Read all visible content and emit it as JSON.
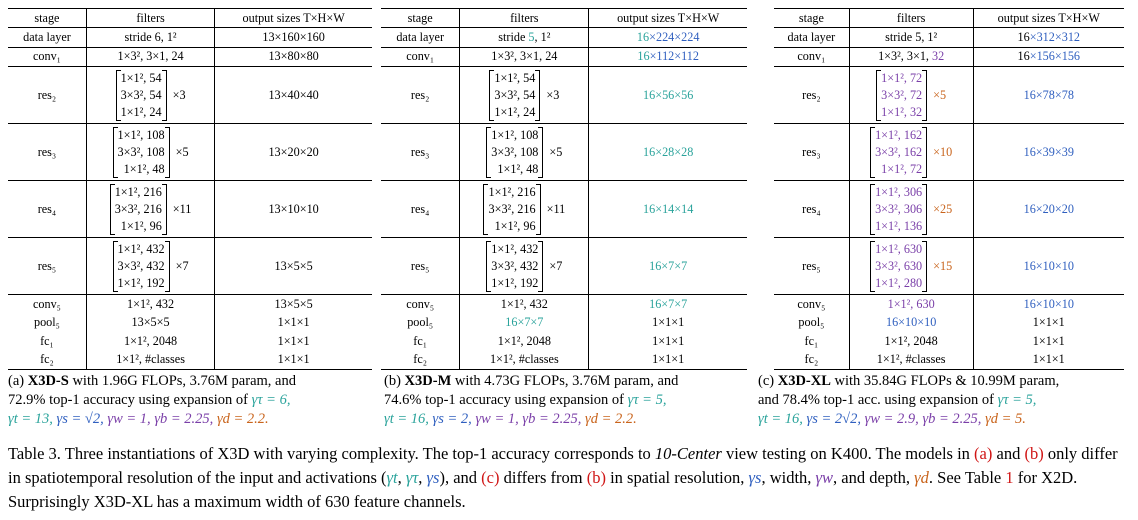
{
  "tables": [
    {
      "id": "a",
      "header": {
        "stage": "stage",
        "filters": "filters",
        "output": "output sizes T×H×W"
      },
      "rows": [
        {
          "stage": "data layer",
          "filters": "stride 6, 1²",
          "output": "13×160×160"
        },
        {
          "stage": "conv₁",
          "filters": "1×3², 3×1, 24",
          "output": "13×80×80"
        },
        {
          "stage": "res₂",
          "l1": "1×1², 54",
          "l2": "3×3², 54",
          "l3": "1×1², 24",
          "rep": "×3",
          "output": "13×40×40"
        },
        {
          "stage": "res₃",
          "l1": "1×1², 108",
          "l2": "3×3², 108",
          "l3": "1×1², 48",
          "rep": "×5",
          "output": "13×20×20"
        },
        {
          "stage": "res₄",
          "l1": "1×1², 216",
          "l2": "3×3², 216",
          "l3": "1×1², 96",
          "rep": "×11",
          "output": "13×10×10"
        },
        {
          "stage": "res₅",
          "l1": "1×1², 432",
          "l2": "3×3², 432",
          "l3": "1×1², 192",
          "rep": "×7",
          "output": "13×5×5"
        },
        {
          "stage": "conv₅",
          "filters": "1×1², 432",
          "output": "13×5×5"
        },
        {
          "stage": "pool₅",
          "filters": "13×5×5",
          "output": "1×1×1"
        },
        {
          "stage": "fc₁",
          "filters": "1×1², 2048",
          "output": "1×1×1"
        },
        {
          "stage": "fc₂",
          "filters": "1×1², #classes",
          "output": "1×1×1"
        }
      ],
      "caption": {
        "label": "(a)",
        "name": "X3D-S",
        "line1_rest": " with 1.96G FLOPs, 3.76M param, and",
        "line2": "72.9% top-1 accuracy using expansion of ",
        "gamma_tau": "γτ = 6,",
        "gamma_t": "γt = 13,",
        "gamma_s": "γs = √2,",
        "gamma_w": "γw = 1,",
        "gamma_b": "γb = 2.25,",
        "gamma_d": "γd = 2.2."
      }
    },
    {
      "id": "b",
      "header": {
        "stage": "stage",
        "filters": "filters",
        "output": "output sizes T×H×W"
      },
      "rows": [
        {
          "stage": "data layer",
          "filters_a": "stride ",
          "filters_b": "5",
          "filters_c": ", 1²",
          "out_a": "16",
          "out_b": "×224×224"
        },
        {
          "stage": "conv₁",
          "filters": "1×3², 3×1, 24",
          "out_a": "16",
          "out_b": "×112×112"
        },
        {
          "stage": "res₂",
          "l1": "1×1², 54",
          "l2": "3×3², 54",
          "l3": "1×1², 24",
          "rep": "×3",
          "output": "16×56×56"
        },
        {
          "stage": "res₃",
          "l1": "1×1², 108",
          "l2": "3×3², 108",
          "l3": "1×1², 48",
          "rep": "×5",
          "output": "16×28×28"
        },
        {
          "stage": "res₄",
          "l1": "1×1², 216",
          "l2": "3×3², 216",
          "l3": "1×1², 96",
          "rep": "×11",
          "output": "16×14×14"
        },
        {
          "stage": "res₅",
          "l1": "1×1², 432",
          "l2": "3×3², 432",
          "l3": "1×1², 192",
          "rep": "×7",
          "output": "16×7×7"
        },
        {
          "stage": "conv₅",
          "filters": "1×1², 432",
          "output": "16×7×7"
        },
        {
          "stage": "pool₅",
          "filters": "16×7×7",
          "output": "1×1×1"
        },
        {
          "stage": "fc₁",
          "filters": "1×1², 2048",
          "output": "1×1×1"
        },
        {
          "stage": "fc₂",
          "filters": "1×1², #classes",
          "output": "1×1×1"
        }
      ],
      "caption": {
        "label": "(b)",
        "name": "X3D-M",
        "line1_rest": " with 4.73G FLOPs, 3.76M param, and",
        "line2": "74.6% top-1 accuracy using expansion of ",
        "gamma_tau": "γτ = 5,",
        "gamma_t": "γt = 16,",
        "gamma_s": "γs = 2,",
        "gamma_w": "γw = 1,",
        "gamma_b": "γb = 2.25,",
        "gamma_d": "γd = 2.2."
      }
    },
    {
      "id": "c",
      "header": {
        "stage": "stage",
        "filters": "filters",
        "output": "output sizes T×H×W"
      },
      "rows": [
        {
          "stage": "data layer",
          "filters": "stride 5, 1²",
          "out_a": "16",
          "out_b": "×312×312"
        },
        {
          "stage": "conv₁",
          "filters_a": "1×3², 3×1, ",
          "filters_b": "32",
          "out_a": "16",
          "out_b": "×156×156"
        },
        {
          "stage": "res₂",
          "l1": "1×1², 72",
          "l2": "3×3², 72",
          "l3": "1×1², 32",
          "rep": "×5",
          "output": "16×78×78"
        },
        {
          "stage": "res₃",
          "l1": "1×1², 162",
          "l2": "3×3², 162",
          "l3": "1×1², 72",
          "rep": "×10",
          "output": "16×39×39"
        },
        {
          "stage": "res₄",
          "l1": "1×1², 306",
          "l2": "3×3², 306",
          "l3": "1×1², 136",
          "rep": "×25",
          "output": "16×20×20"
        },
        {
          "stage": "res₅",
          "l1": "1×1², 630",
          "l2": "3×3², 630",
          "l3": "1×1², 280",
          "rep": "×15",
          "output": "16×10×10"
        },
        {
          "stage": "conv₅",
          "filters": "1×1², 630",
          "output": "16×10×10"
        },
        {
          "stage": "pool₅",
          "filters": "16×10×10",
          "output": "1×1×1"
        },
        {
          "stage": "fc₁",
          "filters": "1×1², 2048",
          "output": "1×1×1"
        },
        {
          "stage": "fc₂",
          "filters": "1×1², #classes",
          "output": "1×1×1"
        }
      ],
      "caption": {
        "label": "(c)",
        "name": "X3D-XL",
        "line1_rest": " with 35.84G FLOPs & 10.99M param,",
        "line2": "and 78.4% top-1 acc. using expansion of ",
        "gamma_tau": "γτ = 5,",
        "gamma_t": "γt = 16,",
        "gamma_s": "γs = 2√2,",
        "gamma_w": "γw = 2.9,",
        "gamma_b": "γb = 2.25,",
        "gamma_d": "γd = 5."
      }
    }
  ],
  "table_caption": {
    "p1": "Table 3. Three instantiations of X3D with varying complexity. The top-1 accuracy corresponds to ",
    "p1_italic": "10-Center",
    "p2": " view testing on K400. The models in ",
    "ref_a": "(a)",
    "p3": " and ",
    "ref_b": "(b)",
    "p4": " only differ in spatiotemporal resolution of the input and activations (",
    "g_t": "γt",
    "g_tau": "γτ",
    "g_s": "γs",
    "p5": "), and ",
    "ref_c": "(c)",
    "p6": " differs from ",
    "ref_b2": "(b)",
    "p7": " in spatial resolution, ",
    "g_s2": "γs",
    "p8": ", width, ",
    "g_w": "γw",
    "p9": ", and depth, ",
    "g_d": "γd",
    "p10": ". See Table ",
    "ref_table": "1",
    "p11": " for X2D. Surprisingly X3D-XL has a maximum width of 630 feature channels."
  },
  "colors": {
    "temporal": "#2aa39b",
    "spatial": "#2f5fbf",
    "width": "#7a3fa8",
    "depth": "#c9641c",
    "link": "#d01515"
  }
}
